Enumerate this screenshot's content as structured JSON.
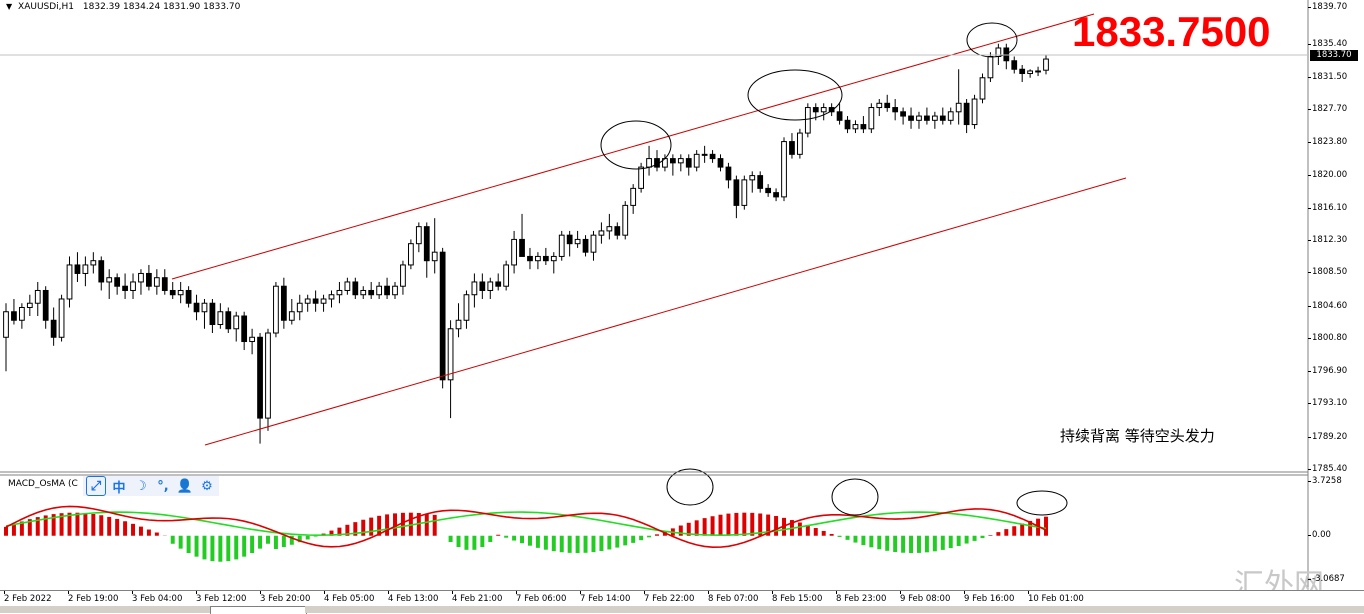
{
  "header": {
    "symbol": "XAUUSDi,H1",
    "ohlc": "1832.39 1834.24 1831.90 1833.70"
  },
  "big_price": "1833.7500",
  "annotation": "持续背离  等待空头发力",
  "macd_label": "MACD_OsMA (C",
  "toolbar_icons": [
    "chart-tool-icon",
    "chinese-input-icon",
    "moon-icon",
    "punctuation-icon",
    "user-icon",
    "settings-icon"
  ],
  "toolbar_glyphs": [
    "⤢",
    "中",
    "☽",
    "°,",
    "👤",
    "⚙"
  ],
  "current_price_label": "1833.70",
  "watermark": "汇外网",
  "colors": {
    "bull_body": "#ffffff",
    "bear_body": "#000000",
    "channel": "#cc0000",
    "macd_red": "#dd0000",
    "signal_green": "#22dd22",
    "hist_pos": "#dd0000",
    "hist_neg": "#22cc22",
    "big_price": "#ff0000"
  },
  "chart_data": [
    {
      "type": "candlestick",
      "symbol": "XAUUSDi",
      "timeframe": "H1",
      "ylim": [
        1785.4,
        1841.0
      ],
      "y_ticks": [
        "1839.70",
        "1835.40",
        "1831.50",
        "1827.70",
        "1823.80",
        "1820.00",
        "1816.10",
        "1812.30",
        "1808.50",
        "1804.60",
        "1800.80",
        "1796.90",
        "1793.10",
        "1789.20",
        "1785.40"
      ],
      "x_ticks": [
        "2 Feb 2022",
        "2 Feb 19:00",
        "3 Feb 04:00",
        "3 Feb 12:00",
        "3 Feb 20:00",
        "4 Feb 05:00",
        "4 Feb 13:00",
        "4 Feb 21:00",
        "7 Feb 06:00",
        "7 Feb 14:00",
        "7 Feb 22:00",
        "8 Feb 07:00",
        "8 Feb 15:00",
        "8 Feb 23:00",
        "9 Feb 08:00",
        "9 Feb 16:00",
        "10 Feb 01:00"
      ],
      "candles": [
        [
          1801.0,
          1805.0,
          1797.0,
          1804.0
        ],
        [
          1804.0,
          1805.5,
          1802.5,
          1803.0
        ],
        [
          1803.0,
          1805.0,
          1802.0,
          1804.5
        ],
        [
          1804.5,
          1806.0,
          1803.5,
          1805.0
        ],
        [
          1805.0,
          1807.5,
          1803.5,
          1806.5
        ],
        [
          1806.5,
          1807.0,
          1802.0,
          1803.0
        ],
        [
          1803.0,
          1804.5,
          1800.0,
          1801.0
        ],
        [
          1801.0,
          1806.0,
          1800.5,
          1805.5
        ],
        [
          1805.5,
          1810.5,
          1804.5,
          1809.5
        ],
        [
          1809.5,
          1811.0,
          1807.5,
          1808.5
        ],
        [
          1808.5,
          1810.5,
          1807.0,
          1809.5
        ],
        [
          1809.5,
          1811.0,
          1808.5,
          1810.0
        ],
        [
          1810.0,
          1810.5,
          1806.5,
          1807.5
        ],
        [
          1807.5,
          1809.0,
          1805.5,
          1808.0
        ],
        [
          1808.0,
          1808.5,
          1806.0,
          1807.0
        ],
        [
          1807.0,
          1808.5,
          1805.5,
          1806.5
        ],
        [
          1806.5,
          1808.5,
          1805.5,
          1807.5
        ],
        [
          1807.5,
          1809.0,
          1806.0,
          1808.5
        ],
        [
          1808.5,
          1809.5,
          1806.5,
          1807.0
        ],
        [
          1807.0,
          1809.0,
          1806.0,
          1808.0
        ],
        [
          1808.0,
          1809.0,
          1806.0,
          1806.5
        ],
        [
          1806.5,
          1807.5,
          1805.5,
          1806.0
        ],
        [
          1806.0,
          1807.5,
          1805.0,
          1806.5
        ],
        [
          1806.5,
          1807.0,
          1804.5,
          1805.0
        ],
        [
          1805.0,
          1806.0,
          1803.0,
          1804.0
        ],
        [
          1804.0,
          1805.5,
          1802.0,
          1805.0
        ],
        [
          1805.0,
          1805.5,
          1801.5,
          1802.5
        ],
        [
          1802.5,
          1805.0,
          1802.0,
          1804.0
        ],
        [
          1804.0,
          1804.5,
          1801.5,
          1802.0
        ],
        [
          1802.0,
          1804.0,
          1800.5,
          1803.5
        ],
        [
          1803.5,
          1804.0,
          1799.5,
          1800.5
        ],
        [
          1800.5,
          1802.0,
          1799.0,
          1801.0
        ],
        [
          1801.0,
          1801.5,
          1788.5,
          1791.5
        ],
        [
          1791.5,
          1802.0,
          1790.0,
          1801.5
        ],
        [
          1801.5,
          1807.5,
          1801.0,
          1807.0
        ],
        [
          1807.0,
          1808.0,
          1802.0,
          1803.0
        ],
        [
          1803.0,
          1805.5,
          1802.5,
          1804.0
        ],
        [
          1804.0,
          1806.0,
          1803.0,
          1805.0
        ],
        [
          1805.0,
          1806.0,
          1804.0,
          1805.5
        ],
        [
          1805.5,
          1806.5,
          1804.0,
          1805.0
        ],
        [
          1805.0,
          1806.0,
          1804.0,
          1805.5
        ],
        [
          1805.5,
          1806.5,
          1804.5,
          1806.0
        ],
        [
          1806.0,
          1807.5,
          1805.0,
          1806.5
        ],
        [
          1806.5,
          1808.0,
          1806.0,
          1807.5
        ],
        [
          1807.5,
          1808.0,
          1805.5,
          1806.0
        ],
        [
          1806.0,
          1807.0,
          1805.5,
          1806.5
        ],
        [
          1806.5,
          1807.5,
          1805.5,
          1806.0
        ],
        [
          1806.0,
          1807.5,
          1805.5,
          1807.0
        ],
        [
          1807.0,
          1808.0,
          1805.5,
          1806.0
        ],
        [
          1806.0,
          1807.5,
          1805.5,
          1807.0
        ],
        [
          1807.0,
          1810.0,
          1806.0,
          1809.5
        ],
        [
          1809.5,
          1812.5,
          1809.0,
          1812.0
        ],
        [
          1812.0,
          1814.5,
          1811.0,
          1814.0
        ],
        [
          1814.0,
          1814.5,
          1808.0,
          1810.0
        ],
        [
          1810.0,
          1815.0,
          1808.5,
          1811.0
        ],
        [
          1811.0,
          1811.5,
          1795.0,
          1796.0
        ],
        [
          1796.0,
          1803.0,
          1791.5,
          1802.0
        ],
        [
          1802.0,
          1805.0,
          1801.0,
          1803.0
        ],
        [
          1803.0,
          1806.5,
          1802.0,
          1806.0
        ],
        [
          1806.0,
          1808.5,
          1804.5,
          1807.5
        ],
        [
          1807.5,
          1808.5,
          1805.5,
          1806.5
        ],
        [
          1806.5,
          1808.0,
          1805.5,
          1807.5
        ],
        [
          1807.5,
          1808.5,
          1806.5,
          1807.0
        ],
        [
          1807.0,
          1810.0,
          1806.5,
          1809.5
        ],
        [
          1809.5,
          1813.5,
          1808.5,
          1812.5
        ],
        [
          1812.5,
          1815.5,
          1811.0,
          1810.5
        ],
        [
          1810.5,
          1811.5,
          1809.0,
          1810.0
        ],
        [
          1810.0,
          1811.0,
          1809.0,
          1810.5
        ],
        [
          1810.5,
          1811.5,
          1809.5,
          1810.0
        ],
        [
          1810.0,
          1811.0,
          1808.5,
          1810.5
        ],
        [
          1810.5,
          1813.5,
          1810.0,
          1813.0
        ],
        [
          1813.0,
          1813.5,
          1810.5,
          1812.0
        ],
        [
          1812.0,
          1813.5,
          1811.5,
          1812.5
        ],
        [
          1812.5,
          1813.0,
          1810.5,
          1811.0
        ],
        [
          1811.0,
          1813.5,
          1810.0,
          1813.0
        ],
        [
          1813.0,
          1814.5,
          1812.0,
          1813.5
        ],
        [
          1813.5,
          1815.5,
          1812.5,
          1814.0
        ],
        [
          1814.0,
          1814.5,
          1812.5,
          1813.0
        ],
        [
          1813.0,
          1817.0,
          1812.5,
          1816.5
        ],
        [
          1816.5,
          1819.0,
          1815.5,
          1818.5
        ],
        [
          1818.5,
          1821.5,
          1818.0,
          1821.0
        ],
        [
          1821.0,
          1823.5,
          1820.0,
          1822.0
        ],
        [
          1822.0,
          1823.0,
          1820.5,
          1821.0
        ],
        [
          1821.0,
          1822.5,
          1820.5,
          1822.0
        ],
        [
          1822.0,
          1822.5,
          1820.0,
          1821.5
        ],
        [
          1821.5,
          1822.5,
          1820.5,
          1822.0
        ],
        [
          1822.0,
          1822.5,
          1820.0,
          1821.0
        ],
        [
          1821.0,
          1823.0,
          1820.5,
          1822.5
        ],
        [
          1822.5,
          1823.5,
          1821.5,
          1822.5
        ],
        [
          1822.5,
          1823.0,
          1821.5,
          1822.0
        ],
        [
          1822.0,
          1822.5,
          1820.5,
          1821.0
        ],
        [
          1821.0,
          1821.5,
          1818.5,
          1819.5
        ],
        [
          1819.5,
          1820.0,
          1815.0,
          1816.5
        ],
        [
          1816.5,
          1820.0,
          1816.0,
          1819.5
        ],
        [
          1819.5,
          1820.5,
          1818.0,
          1820.0
        ],
        [
          1820.0,
          1820.5,
          1818.0,
          1818.5
        ],
        [
          1818.5,
          1819.0,
          1817.5,
          1818.0
        ],
        [
          1818.0,
          1818.5,
          1817.0,
          1817.5
        ],
        [
          1817.5,
          1824.5,
          1817.0,
          1824.0
        ],
        [
          1824.0,
          1825.0,
          1822.0,
          1822.5
        ],
        [
          1822.5,
          1825.5,
          1822.0,
          1825.0
        ],
        [
          1825.0,
          1828.5,
          1824.5,
          1828.0
        ],
        [
          1828.0,
          1828.5,
          1826.5,
          1827.5
        ],
        [
          1827.5,
          1828.5,
          1826.5,
          1828.0
        ],
        [
          1828.0,
          1828.5,
          1827.0,
          1827.5
        ],
        [
          1827.5,
          1828.5,
          1826.0,
          1826.5
        ],
        [
          1826.5,
          1827.0,
          1825.0,
          1825.5
        ],
        [
          1825.5,
          1826.5,
          1825.0,
          1826.0
        ],
        [
          1826.0,
          1827.0,
          1825.0,
          1825.5
        ],
        [
          1825.5,
          1828.5,
          1825.0,
          1828.0
        ],
        [
          1828.0,
          1829.0,
          1827.0,
          1828.5
        ],
        [
          1828.5,
          1829.5,
          1827.5,
          1828.0
        ],
        [
          1828.0,
          1829.0,
          1826.5,
          1827.5
        ],
        [
          1827.5,
          1828.0,
          1826.0,
          1827.0
        ],
        [
          1827.0,
          1828.0,
          1825.5,
          1826.5
        ],
        [
          1826.5,
          1827.5,
          1825.5,
          1827.0
        ],
        [
          1827.0,
          1828.0,
          1826.0,
          1826.5
        ],
        [
          1826.5,
          1827.5,
          1825.5,
          1827.0
        ],
        [
          1827.0,
          1828.0,
          1826.0,
          1826.5
        ],
        [
          1826.5,
          1828.0,
          1826.0,
          1827.5
        ],
        [
          1827.5,
          1832.5,
          1826.0,
          1828.5
        ],
        [
          1828.5,
          1829.0,
          1825.0,
          1826.0
        ],
        [
          1826.0,
          1829.5,
          1825.5,
          1829.0
        ],
        [
          1829.0,
          1832.0,
          1828.5,
          1831.5
        ],
        [
          1831.5,
          1834.5,
          1831.0,
          1834.0
        ],
        [
          1834.0,
          1835.5,
          1833.0,
          1835.0
        ],
        [
          1835.0,
          1835.5,
          1832.5,
          1833.5
        ],
        [
          1833.5,
          1834.0,
          1832.0,
          1832.5
        ],
        [
          1832.5,
          1833.0,
          1831.0,
          1832.0
        ],
        [
          1832.0,
          1832.5,
          1831.5,
          1832.3
        ],
        [
          1832.3,
          1832.8,
          1831.7,
          1832.2
        ],
        [
          1832.39,
          1834.24,
          1831.9,
          1833.7
        ]
      ]
    },
    {
      "type": "line",
      "name": "MACD_OsMA",
      "y_ticks": [
        "3.7258",
        "0.00",
        "-3.0687"
      ],
      "ylim": [
        -3.0687,
        3.7258
      ]
    }
  ]
}
